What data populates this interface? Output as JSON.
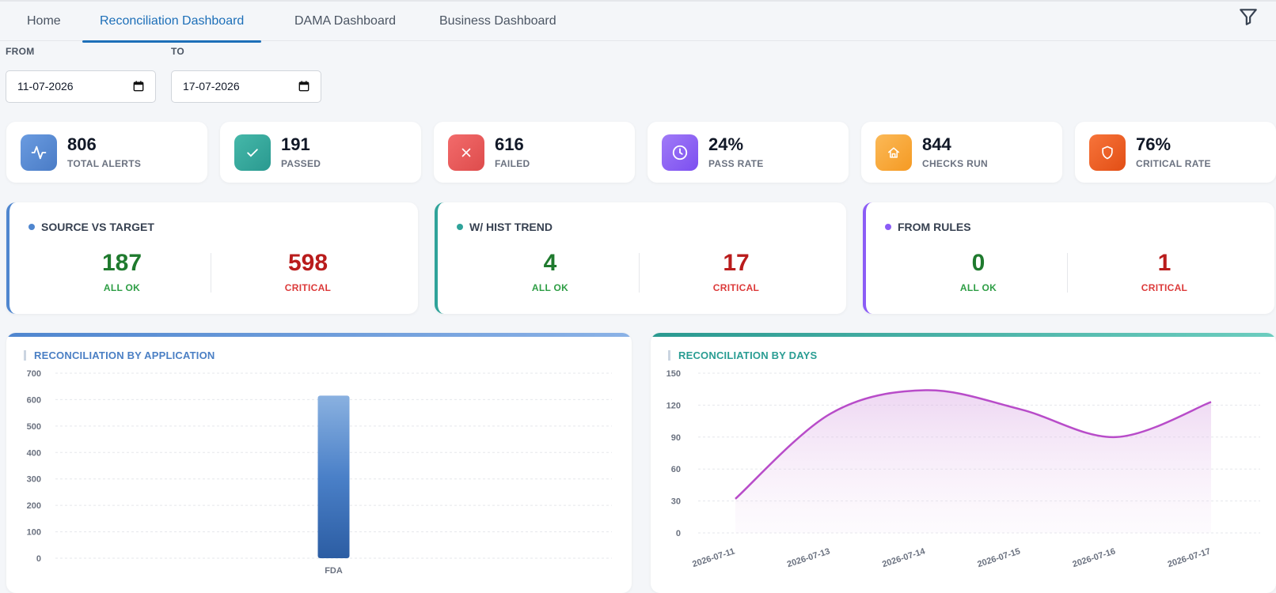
{
  "tabs": [
    {
      "label": "Home",
      "active": false
    },
    {
      "label": "Reconciliation Dashboard",
      "active": true
    },
    {
      "label": "DAMA Dashboard",
      "active": false
    },
    {
      "label": "Business Dashboard",
      "active": false
    }
  ],
  "filter": {
    "icon": "filter-icon"
  },
  "dates": {
    "from_label": "FROM",
    "from_value": "11-07-2026",
    "to_label": "TO",
    "to_value": "17-07-2026"
  },
  "stats": [
    {
      "value": "806",
      "label": "TOTAL ALERTS",
      "icon": "activity-icon",
      "color": "#4f86cf"
    },
    {
      "value": "191",
      "label": "PASSED",
      "icon": "check-icon",
      "color": "#2fa39a"
    },
    {
      "value": "616",
      "label": "FAILED",
      "icon": "close-icon",
      "color": "#e65454"
    },
    {
      "value": "24%",
      "label": "PASS RATE",
      "icon": "clock-icon",
      "color": "#8b5cf6"
    },
    {
      "value": "844",
      "label": "CHECKS RUN",
      "icon": "home-icon",
      "color": "#f6a431"
    },
    {
      "value": "76%",
      "label": "CRITICAL RATE",
      "icon": "shield-icon",
      "color": "#ef5a1e"
    }
  ],
  "summaries": [
    {
      "title": "SOURCE VS TARGET",
      "ok_value": "187",
      "ok_label": "ALL OK",
      "critical_value": "598",
      "critical_label": "CRITICAL",
      "color": "#4f86cf"
    },
    {
      "title": "W/ HIST TREND",
      "ok_value": "4",
      "ok_label": "ALL OK",
      "critical_value": "17",
      "critical_label": "CRITICAL",
      "color": "#2fa39a"
    },
    {
      "title": "FROM RULES",
      "ok_value": "0",
      "ok_label": "ALL OK",
      "critical_value": "1",
      "critical_label": "CRITICAL",
      "color": "#8b5cf6"
    }
  ],
  "chart_data": [
    {
      "type": "bar",
      "title": "RECONCILIATION BY APPLICATION",
      "categories": [
        "FDA"
      ],
      "values": [
        615
      ],
      "ylim": [
        0,
        700
      ],
      "yticks": [
        0,
        100,
        200,
        300,
        400,
        500,
        600,
        700
      ],
      "grid": true,
      "accent": "#4f86cf"
    },
    {
      "type": "area",
      "title": "RECONCILIATION BY DAYS",
      "x": [
        "2026-07-11",
        "2026-07-13",
        "2026-07-14",
        "2026-07-15",
        "2026-07-16",
        "2026-07-17"
      ],
      "values": [
        32,
        112,
        134,
        116,
        90,
        123
      ],
      "ylim": [
        0,
        150
      ],
      "yticks": [
        0,
        30,
        60,
        90,
        120,
        150
      ],
      "grid": true,
      "accent": "#2fa39a",
      "line_color": "#b84cc9"
    }
  ]
}
